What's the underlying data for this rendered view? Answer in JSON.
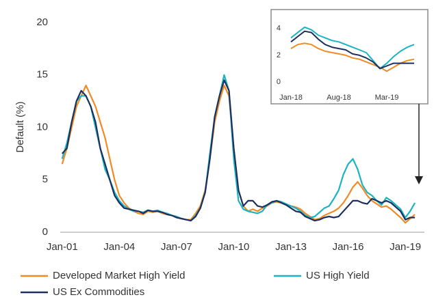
{
  "chart_data": [
    {
      "type": "line",
      "y_label": "Default (%)",
      "x": [
        2001,
        2001.25,
        2001.5,
        2001.75,
        2002,
        2002.25,
        2002.5,
        2002.75,
        2003,
        2003.25,
        2003.5,
        2003.75,
        2004,
        2004.25,
        2004.5,
        2004.75,
        2005,
        2005.25,
        2005.5,
        2005.75,
        2006,
        2006.25,
        2006.5,
        2006.75,
        2007,
        2007.25,
        2007.5,
        2007.75,
        2008,
        2008.25,
        2008.5,
        2008.75,
        2009,
        2009.25,
        2009.5,
        2009.75,
        2010,
        2010.25,
        2010.5,
        2010.75,
        2011,
        2011.25,
        2011.5,
        2011.75,
        2012,
        2012.25,
        2012.5,
        2012.75,
        2013,
        2013.25,
        2013.5,
        2013.75,
        2014,
        2014.25,
        2014.5,
        2014.75,
        2015,
        2015.25,
        2015.5,
        2015.75,
        2016,
        2016.25,
        2016.5,
        2016.75,
        2017,
        2017.25,
        2017.5,
        2017.75,
        2018,
        2018.25,
        2018.5,
        2018.75,
        2019,
        2019.25,
        2019.5
      ],
      "xlim": [
        2000.9,
        2020
      ],
      "xticks": [
        {
          "value": 2001,
          "label": "Jan-01"
        },
        {
          "value": 2004,
          "label": "Jan-04"
        },
        {
          "value": 2007,
          "label": "Jan-07"
        },
        {
          "value": 2010,
          "label": "Jan-10"
        },
        {
          "value": 2013,
          "label": "Jan-13"
        },
        {
          "value": 2016,
          "label": "Jan-16"
        },
        {
          "value": 2019,
          "label": "Jan-19"
        }
      ],
      "ylim": [
        0,
        20
      ],
      "yticks": [
        0,
        5,
        10,
        15,
        20
      ],
      "series": [
        {
          "name": "Developed Market High Yield",
          "color": "#f08a24",
          "values": [
            6.5,
            8,
            10,
            12,
            13,
            14,
            13,
            12,
            10.5,
            9,
            7,
            5,
            3.5,
            2.8,
            2.3,
            2.0,
            1.8,
            1.7,
            2.0,
            1.9,
            2.0,
            1.8,
            1.7,
            1.6,
            1.5,
            1.3,
            1.2,
            1.2,
            1.8,
            2.5,
            4,
            7,
            10.5,
            12.5,
            14,
            13,
            8,
            4,
            2.5,
            2.0,
            2.2,
            2.0,
            2.3,
            2.5,
            2.8,
            2.9,
            2.8,
            2.6,
            2.5,
            2.4,
            2.2,
            1.8,
            1.5,
            1.2,
            1.3,
            1.6,
            1.8,
            2.0,
            2.3,
            2.8,
            3.5,
            4.3,
            4.8,
            4.2,
            3.5,
            3.0,
            2.7,
            2.4,
            2.5,
            2.2,
            1.8,
            1.4,
            0.9,
            1.3,
            1.7
          ]
        },
        {
          "name": "US High Yield",
          "color": "#1ab3c2",
          "values": [
            7,
            8.5,
            10.5,
            12.5,
            13,
            13,
            12,
            10,
            8,
            6,
            5,
            3.8,
            3,
            2.5,
            2.2,
            2.0,
            2.0,
            1.9,
            2.1,
            2.0,
            2.1,
            1.9,
            1.8,
            1.6,
            1.5,
            1.3,
            1.2,
            1.1,
            1.6,
            2.3,
            3.8,
            7.5,
            11,
            13,
            15,
            13.5,
            7,
            3,
            2.2,
            2.0,
            1.9,
            1.8,
            2.0,
            2.6,
            2.8,
            3.0,
            2.9,
            2.7,
            2.5,
            2.3,
            2.0,
            1.6,
            1.4,
            1.5,
            1.9,
            2.3,
            2.5,
            3.2,
            4.0,
            5.5,
            6.5,
            7.0,
            6.0,
            4.5,
            3.8,
            3.5,
            3.0,
            2.6,
            3.3,
            3.0,
            2.6,
            2.2,
            1.4,
            2.0,
            2.8
          ]
        },
        {
          "name": "US Ex Commodities",
          "color": "#1c2f5e",
          "values": [
            7.5,
            8,
            10.5,
            12.5,
            13.5,
            13,
            12,
            10.5,
            8,
            6.5,
            5,
            3.5,
            2.8,
            2.3,
            2.2,
            2.1,
            2.0,
            1.8,
            2.1,
            2.0,
            2.0,
            1.9,
            1.7,
            1.6,
            1.4,
            1.3,
            1.2,
            1.1,
            1.5,
            2.3,
            3.8,
            7.0,
            11,
            13,
            14.5,
            13.5,
            8,
            4,
            2.5,
            3.0,
            3.0,
            2.5,
            2.4,
            2.6,
            2.9,
            3.0,
            2.8,
            2.6,
            2.3,
            2.0,
            1.9,
            1.5,
            1.3,
            1.1,
            1.2,
            1.4,
            1.5,
            1.4,
            1.5,
            2.0,
            2.5,
            3.0,
            3.0,
            2.8,
            2.7,
            3.2,
            3.0,
            2.8,
            3.0,
            2.8,
            2.4,
            2.0,
            1.2,
            1.4,
            1.4
          ]
        }
      ]
    },
    {
      "type": "line",
      "categories": [
        "Jan-18",
        null,
        null,
        null,
        null,
        null,
        null,
        "Aug-18",
        null,
        null,
        null,
        null,
        null,
        null,
        "Mar-19",
        null,
        null,
        null,
        null
      ],
      "ylim": [
        0,
        4.6
      ],
      "yticks": [
        0,
        2,
        4
      ],
      "series": [
        {
          "color": "#f08a24",
          "values": [
            2.5,
            2.8,
            2.9,
            2.8,
            2.5,
            2.3,
            2.2,
            2.1,
            2.0,
            1.8,
            1.7,
            1.5,
            1.3,
            1.1,
            0.8,
            1.1,
            1.4,
            1.6,
            1.7
          ]
        },
        {
          "color": "#1ab3c2",
          "values": [
            3.3,
            3.7,
            4.1,
            3.9,
            3.5,
            3.3,
            3.1,
            3.0,
            2.8,
            2.6,
            2.4,
            2.2,
            1.6,
            1.0,
            1.4,
            1.9,
            2.3,
            2.6,
            2.8
          ]
        },
        {
          "color": "#1c2f5e",
          "values": [
            3.0,
            3.4,
            3.8,
            3.7,
            3.2,
            2.8,
            2.6,
            2.5,
            2.4,
            2.1,
            2.0,
            1.8,
            1.5,
            1.0,
            1.2,
            1.4,
            1.4,
            1.4,
            1.4
          ]
        }
      ]
    }
  ]
}
